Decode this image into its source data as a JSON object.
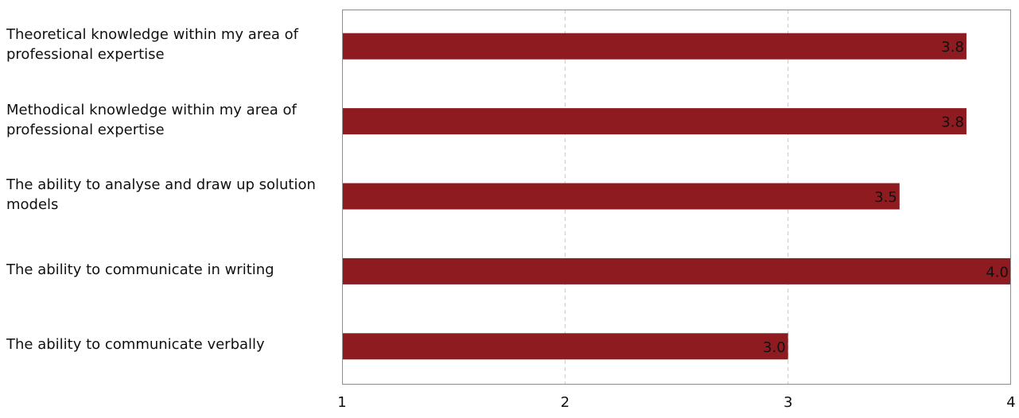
{
  "chart_data": {
    "type": "bar",
    "orientation": "horizontal",
    "title": "",
    "xlabel": "",
    "ylabel": "",
    "categories": [
      "Theoretical knowledge within my area of professional expertise",
      "Methodical knowledge within my area of professional expertise",
      "The ability to analyse and draw up solution models",
      "The ability to communicate in writing",
      "The ability to communicate verbally"
    ],
    "values": [
      3.8,
      3.8,
      3.5,
      4.0,
      3.0
    ],
    "value_labels": [
      "3.8",
      "3.8",
      "3.5",
      "4.0",
      "3.0"
    ],
    "xlim": [
      1,
      4
    ],
    "xticks": [
      "1",
      "2",
      "3",
      "4"
    ],
    "grid": "vertical-dashed",
    "legend": "none",
    "colors": {
      "bar": "#8e1b20",
      "axis": "#8c8c8c",
      "grid": "#c8c8c8"
    }
  }
}
